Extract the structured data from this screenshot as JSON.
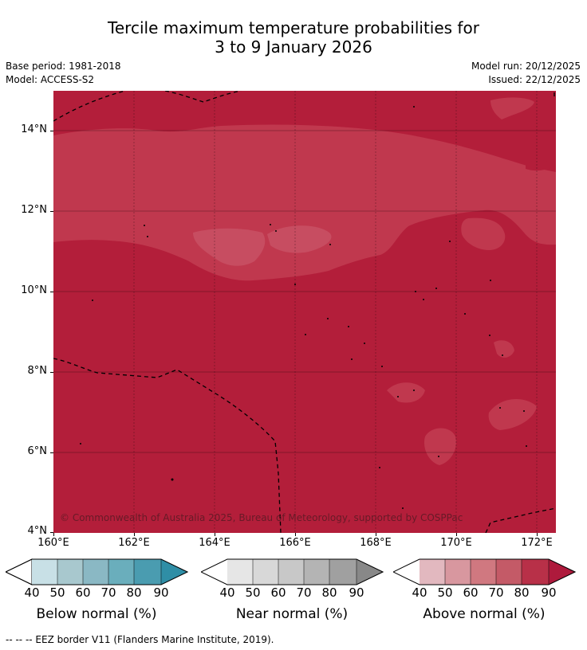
{
  "title": {
    "line1": "Tercile maximum temperature probabilities for",
    "line2": "3 to 9 January 2026"
  },
  "meta": {
    "base_period": "Base period: 1981-2018",
    "model": "Model: ACCESS-S2",
    "model_run": "Model run: 20/12/2025",
    "issued": "Issued: 22/12/2025"
  },
  "map": {
    "credit": "© Commonwealth of Australia 2025, Bureau of Meteorology, supported by COSPPac",
    "lat_labels": [
      "14°N",
      "12°N",
      "10°N",
      "8°N",
      "6°N",
      "4°N"
    ],
    "lon_labels": [
      "160°E",
      "162°E",
      "164°E",
      "166°E",
      "168°E",
      "170°E",
      "172°E"
    ],
    "colors": {
      "above_80_90": "#b31e3a",
      "above_70_80": "#c0384e",
      "above_60_70": "#c74d61",
      "eez_line": "#000000"
    }
  },
  "legend": {
    "ticks": [
      "40",
      "50",
      "60",
      "70",
      "80",
      "90"
    ],
    "below": {
      "title": "Below normal (%)",
      "colors": [
        "#c8e0e6",
        "#a8c8ce",
        "#8ab8c4",
        "#6aaebc",
        "#4a9cb0",
        "#2f8ea6"
      ]
    },
    "near": {
      "title": "Near normal (%)",
      "colors": [
        "#e6e6e6",
        "#d8d8d8",
        "#c8c8c8",
        "#b4b4b4",
        "#a0a0a0",
        "#888888"
      ]
    },
    "above": {
      "title": "Above normal (%)",
      "colors": [
        "#e2b8bf",
        "#d8979f",
        "#d07880",
        "#c45a67",
        "#b83048",
        "#ae1a3c"
      ]
    }
  },
  "footnote": "--  --  -- EEZ border V11 (Flanders Marine Institute, 2019)."
}
